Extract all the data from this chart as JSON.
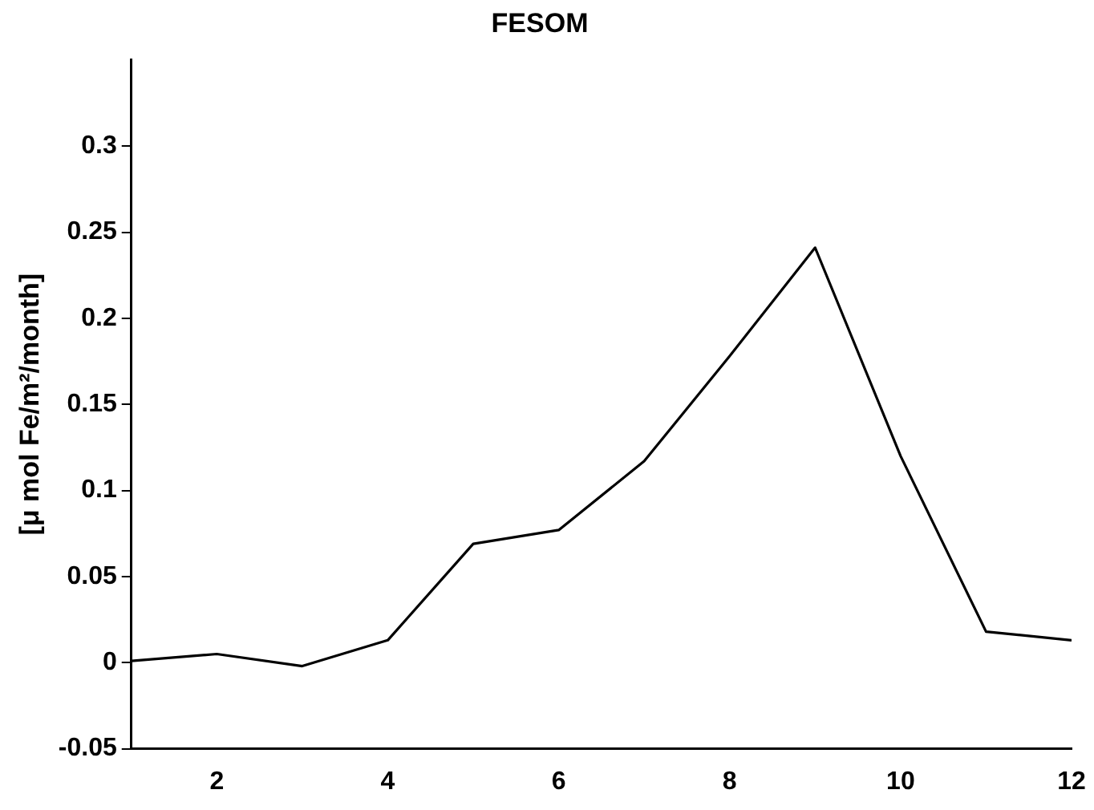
{
  "chart_data": {
    "type": "line",
    "title": "FESOM",
    "ylabel": "[μ mol Fe/m²/month]",
    "x": [
      1,
      2,
      3,
      4,
      5,
      6,
      7,
      8,
      9,
      10,
      11,
      12
    ],
    "series": [
      {
        "color": "#000000",
        "values": [
          0.001,
          0.005,
          -0.002,
          0.013,
          0.069,
          0.077,
          0.117,
          0.178,
          0.241,
          0.12,
          0.018,
          0.013
        ]
      }
    ],
    "xlim": [
      1,
      12
    ],
    "xticks": [
      2,
      4,
      6,
      8,
      10,
      12
    ],
    "ylim": [
      -0.05,
      0.35
    ],
    "yticks": [
      -0.05,
      0,
      0.05,
      0.1,
      0.15,
      0.2,
      0.25,
      0.3
    ],
    "grid": false,
    "legend": false,
    "marker": "none",
    "line_style": "solid"
  }
}
